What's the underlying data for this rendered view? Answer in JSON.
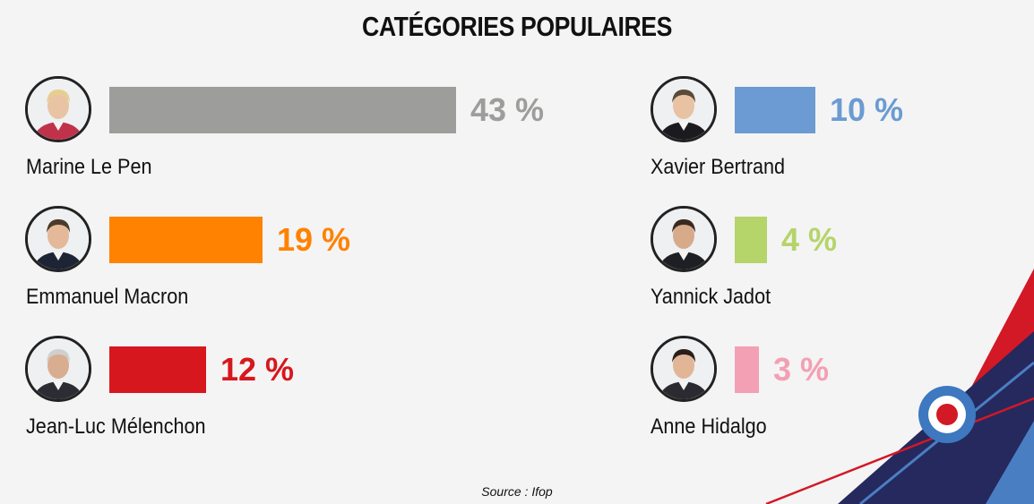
{
  "title": "CATÉGORIES POPULAIRES",
  "source": "Source :  Ifop",
  "chart_data": {
    "type": "bar",
    "title": "CATÉGORIES POPULAIRES",
    "categories": [
      "Marine Le Pen",
      "Emmanuel Macron",
      "Jean-Luc Mélenchon",
      "Xavier Bertrand",
      "Yannick Jadot",
      "Anne Hidalgo"
    ],
    "values": [
      43,
      19,
      12,
      10,
      4,
      3
    ],
    "value_labels": [
      "43 %",
      "19 %",
      "12 %",
      "10 %",
      "4 %",
      "3 %"
    ],
    "colors": [
      "#9d9d9b",
      "#ff8200",
      "#d7171e",
      "#6b9bd2",
      "#b5d46a",
      "#f3a0b4"
    ],
    "unit": "%",
    "xlabel": "",
    "ylabel": "",
    "grid": false,
    "legend": "none"
  }
}
